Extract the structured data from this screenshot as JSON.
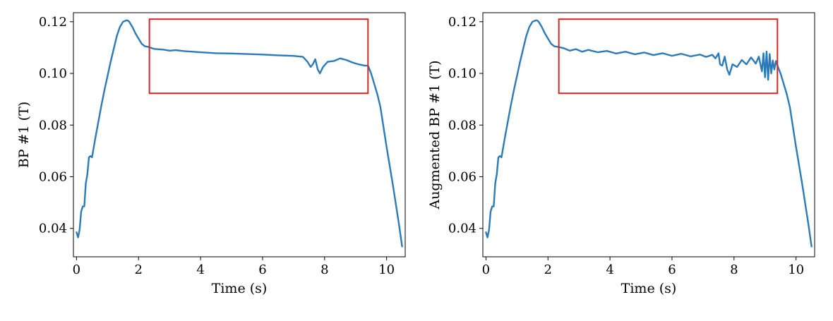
{
  "chart_data": [
    {
      "type": "line",
      "title": "",
      "xlabel": "Time (s)",
      "ylabel": "BP #1 (T)",
      "xlim": [
        -0.1,
        10.6
      ],
      "ylim": [
        0.029,
        0.1235
      ],
      "xticks": [
        0,
        2,
        4,
        6,
        8,
        10
      ],
      "xtick_labels": [
        "0",
        "2",
        "4",
        "6",
        "8",
        "10"
      ],
      "yticks": [
        0.04,
        0.06,
        0.08,
        0.1,
        0.12
      ],
      "ytick_labels": [
        "0.04",
        "0.06",
        "0.08",
        "0.10",
        "0.12"
      ],
      "grid": false,
      "line_color": "#2b7bba",
      "highlight_color": "#d62728",
      "highlight_box": {
        "x": [
          2.35,
          9.4
        ],
        "y": [
          0.0923,
          0.121
        ]
      },
      "series": [
        {
          "x": [
            0.0,
            0.05,
            0.1,
            0.15,
            0.2,
            0.25,
            0.3,
            0.35,
            0.4,
            0.45,
            0.5,
            0.55,
            0.6,
            0.7,
            0.8,
            0.9,
            1.0,
            1.1,
            1.2,
            1.3,
            1.4,
            1.5,
            1.6,
            1.65,
            1.7,
            1.75,
            1.8,
            1.9,
            2.0,
            2.1,
            2.2,
            2.3,
            2.5,
            2.8,
            3.0,
            3.2,
            3.5,
            4.0,
            4.5,
            5.0,
            5.5,
            6.0,
            6.5,
            7.0,
            7.3,
            7.45,
            7.55,
            7.62,
            7.7,
            7.78,
            7.85,
            7.95,
            8.1,
            8.3,
            8.5,
            8.7,
            8.9,
            9.1,
            9.3,
            9.4,
            9.5,
            9.6,
            9.7,
            9.8,
            10.0,
            10.2,
            10.4,
            10.5
          ],
          "y": [
            0.0385,
            0.0365,
            0.0395,
            0.0465,
            0.0485,
            0.0485,
            0.0575,
            0.061,
            0.0675,
            0.068,
            0.0675,
            0.071,
            0.0745,
            0.081,
            0.0875,
            0.0935,
            0.099,
            0.1045,
            0.1095,
            0.1145,
            0.118,
            0.12,
            0.1205,
            0.1205,
            0.12,
            0.119,
            0.118,
            0.1155,
            0.1135,
            0.1115,
            0.1105,
            0.1103,
            0.1095,
            0.1092,
            0.1088,
            0.109,
            0.1086,
            0.1082,
            0.1078,
            0.1077,
            0.1075,
            0.1073,
            0.107,
            0.1068,
            0.1064,
            0.1045,
            0.1025,
            0.1035,
            0.1055,
            0.1015,
            0.1,
            0.1025,
            0.1045,
            0.1048,
            0.1058,
            0.1052,
            0.1042,
            0.1035,
            0.103,
            0.103,
            0.1,
            0.096,
            0.092,
            0.087,
            0.0715,
            0.057,
            0.0415,
            0.033
          ]
        }
      ]
    },
    {
      "type": "line",
      "title": "",
      "xlabel": "Time (s)",
      "ylabel": "Augmented BP #1 (T)",
      "xlim": [
        -0.1,
        10.6
      ],
      "ylim": [
        0.029,
        0.1235
      ],
      "xticks": [
        0,
        2,
        4,
        6,
        8,
        10
      ],
      "xtick_labels": [
        "0",
        "2",
        "4",
        "6",
        "8",
        "10"
      ],
      "yticks": [
        0.04,
        0.06,
        0.08,
        0.1,
        0.12
      ],
      "ytick_labels": [
        "0.04",
        "0.06",
        "0.08",
        "0.10",
        "0.12"
      ],
      "grid": false,
      "line_color": "#2b7bba",
      "highlight_color": "#d62728",
      "highlight_box": {
        "x": [
          2.35,
          9.4
        ],
        "y": [
          0.0923,
          0.121
        ]
      },
      "series": [
        {
          "x": [
            0.0,
            0.05,
            0.1,
            0.15,
            0.2,
            0.25,
            0.3,
            0.35,
            0.4,
            0.45,
            0.5,
            0.55,
            0.6,
            0.7,
            0.8,
            0.9,
            1.0,
            1.1,
            1.2,
            1.3,
            1.4,
            1.5,
            1.6,
            1.65,
            1.7,
            1.75,
            1.8,
            1.9,
            2.0,
            2.1,
            2.2,
            2.3,
            2.5,
            2.7,
            2.9,
            3.1,
            3.3,
            3.6,
            3.9,
            4.2,
            4.5,
            4.8,
            5.1,
            5.4,
            5.7,
            6.0,
            6.3,
            6.6,
            6.9,
            7.1,
            7.3,
            7.4,
            7.5,
            7.55,
            7.62,
            7.7,
            7.78,
            7.85,
            7.95,
            8.1,
            8.25,
            8.4,
            8.55,
            8.7,
            8.8,
            8.9,
            8.95,
            9.0,
            9.05,
            9.1,
            9.15,
            9.2,
            9.25,
            9.3,
            9.35,
            9.4,
            9.5,
            9.6,
            9.7,
            9.8,
            10.0,
            10.2,
            10.4,
            10.5
          ],
          "y": [
            0.0385,
            0.0365,
            0.0395,
            0.0465,
            0.0485,
            0.0485,
            0.0575,
            0.061,
            0.0675,
            0.068,
            0.0675,
            0.071,
            0.0745,
            0.081,
            0.0875,
            0.0935,
            0.099,
            0.1045,
            0.1095,
            0.1145,
            0.118,
            0.12,
            0.1205,
            0.1205,
            0.12,
            0.119,
            0.118,
            0.1155,
            0.1135,
            0.1115,
            0.1105,
            0.1103,
            0.1098,
            0.1088,
            0.1094,
            0.1084,
            0.1091,
            0.1082,
            0.1087,
            0.1077,
            0.1084,
            0.1074,
            0.1081,
            0.1071,
            0.1078,
            0.1068,
            0.1076,
            0.1066,
            0.1073,
            0.1064,
            0.1072,
            0.1058,
            0.1078,
            0.1035,
            0.103,
            0.1065,
            0.1015,
            0.0995,
            0.1035,
            0.1025,
            0.1052,
            0.1035,
            0.1062,
            0.1038,
            0.1065,
            0.1008,
            0.1078,
            0.0985,
            0.1085,
            0.0975,
            0.1075,
            0.1,
            0.105,
            0.1015,
            0.1048,
            0.103,
            0.1,
            0.096,
            0.092,
            0.087,
            0.0715,
            0.057,
            0.0415,
            0.033
          ]
        }
      ]
    }
  ]
}
